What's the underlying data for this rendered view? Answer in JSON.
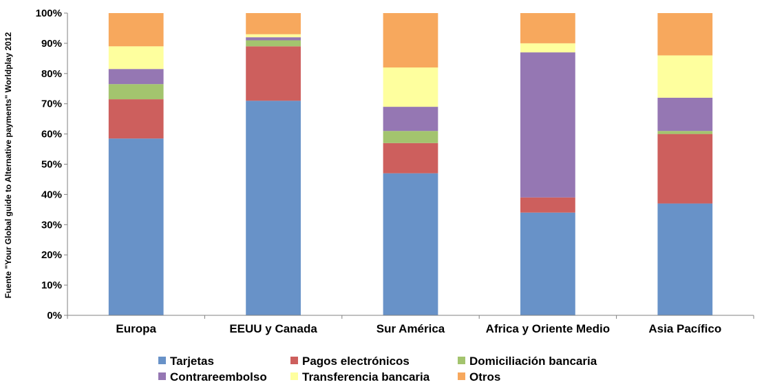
{
  "chart_data": {
    "type": "bar",
    "stacked": true,
    "percent": true,
    "title": "",
    "xlabel": "",
    "ylabel": "Fuente \"Your Global guide to Alternative payments\" Worldplay 2012",
    "ylim": [
      0,
      100
    ],
    "yticks": [
      "0%",
      "10%",
      "20%",
      "30%",
      "40%",
      "50%",
      "60%",
      "70%",
      "80%",
      "90%",
      "100%"
    ],
    "grid": false,
    "legend_position": "bottom",
    "categories": [
      "Europa",
      "EEUU y Canada",
      "Sur América",
      "Africa y Oriente Medio",
      "Asia Pacífico"
    ],
    "series": [
      {
        "name": "Tarjetas",
        "color": "#6892c8",
        "values": [
          58.5,
          71,
          47,
          34,
          37
        ]
      },
      {
        "name": "Pagos electrónicos",
        "color": "#cd5f5d",
        "values": [
          13,
          18,
          10,
          5,
          23
        ]
      },
      {
        "name": "Domiciliación bancaria",
        "color": "#a3c46e",
        "values": [
          5,
          2,
          4,
          0,
          1
        ]
      },
      {
        "name": "Contrareembolso",
        "color": "#9577b3",
        "values": [
          5,
          1,
          8,
          48,
          11
        ]
      },
      {
        "name": "Transferencia bancaria",
        "color": "#feff9e",
        "values": [
          7.5,
          1,
          13,
          3,
          14
        ]
      },
      {
        "name": "Otros",
        "color": "#f7a85d",
        "values": [
          11,
          7,
          18,
          10,
          14
        ]
      }
    ]
  }
}
